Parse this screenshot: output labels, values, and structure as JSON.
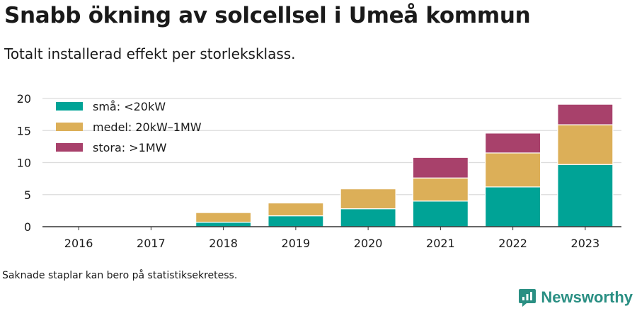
{
  "title": "Snabb ökning av solcellsel i Umeå kommun",
  "subtitle": "Totalt installerad effekt per storleksklass.",
  "footnote": "Saknade staplar kan bero på statistiksekretess.",
  "brand": {
    "name": "Newsworthy",
    "icon": "newsworthy-logo-icon",
    "color": "#2a8f83"
  },
  "chart_data": {
    "type": "bar",
    "stacked": true,
    "categories": [
      "2016",
      "2017",
      "2018",
      "2019",
      "2020",
      "2021",
      "2022",
      "2023"
    ],
    "series": [
      {
        "name": "små: <20kW",
        "color": "#00a396",
        "values": [
          0,
          0,
          0.7,
          1.7,
          2.8,
          4.0,
          6.2,
          9.7
        ]
      },
      {
        "name": "medel: 20kW–1MW",
        "color": "#dcaf58",
        "values": [
          0,
          0,
          1.5,
          2.0,
          3.1,
          3.6,
          5.3,
          6.2
        ]
      },
      {
        "name": "stora: >1MW",
        "color": "#a8416b",
        "values": [
          0,
          0,
          0,
          0,
          0,
          3.2,
          3.1,
          3.2
        ]
      }
    ],
    "yticks": [
      0,
      5,
      10,
      15,
      20
    ],
    "ylim": [
      0,
      20
    ],
    "grid": true,
    "legend": "top-left"
  }
}
